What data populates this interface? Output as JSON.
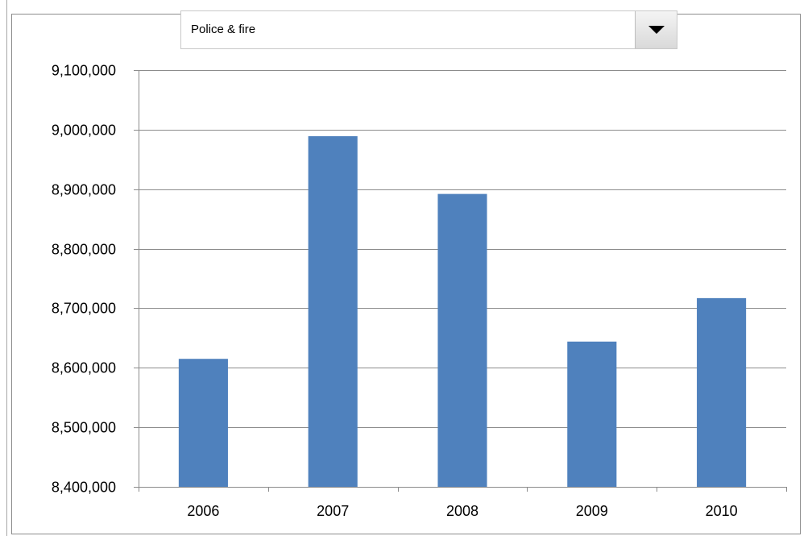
{
  "selector": {
    "value": "Police & fire",
    "arrow_icon": "triangle-down-icon"
  },
  "colors": {
    "bar": "#4f81bd",
    "grid": "#8c8c8c",
    "axis": "#8c8c8c"
  },
  "chart_data": {
    "type": "bar",
    "categories": [
      "2006",
      "2007",
      "2008",
      "2009",
      "2010"
    ],
    "values": [
      8615000,
      8989000,
      8892000,
      8644000,
      8717000
    ],
    "ylim": [
      8400000,
      9100000
    ],
    "yticks": [
      8400000,
      8500000,
      8600000,
      8700000,
      8800000,
      8900000,
      9000000,
      9100000
    ],
    "ytick_labels": [
      "8,400,000",
      "8,500,000",
      "8,600,000",
      "8,700,000",
      "8,800,000",
      "8,900,000",
      "9,000,000",
      "9,100,000"
    ],
    "grid": true,
    "legend": "none",
    "title": "",
    "xlabel": "",
    "ylabel": ""
  }
}
